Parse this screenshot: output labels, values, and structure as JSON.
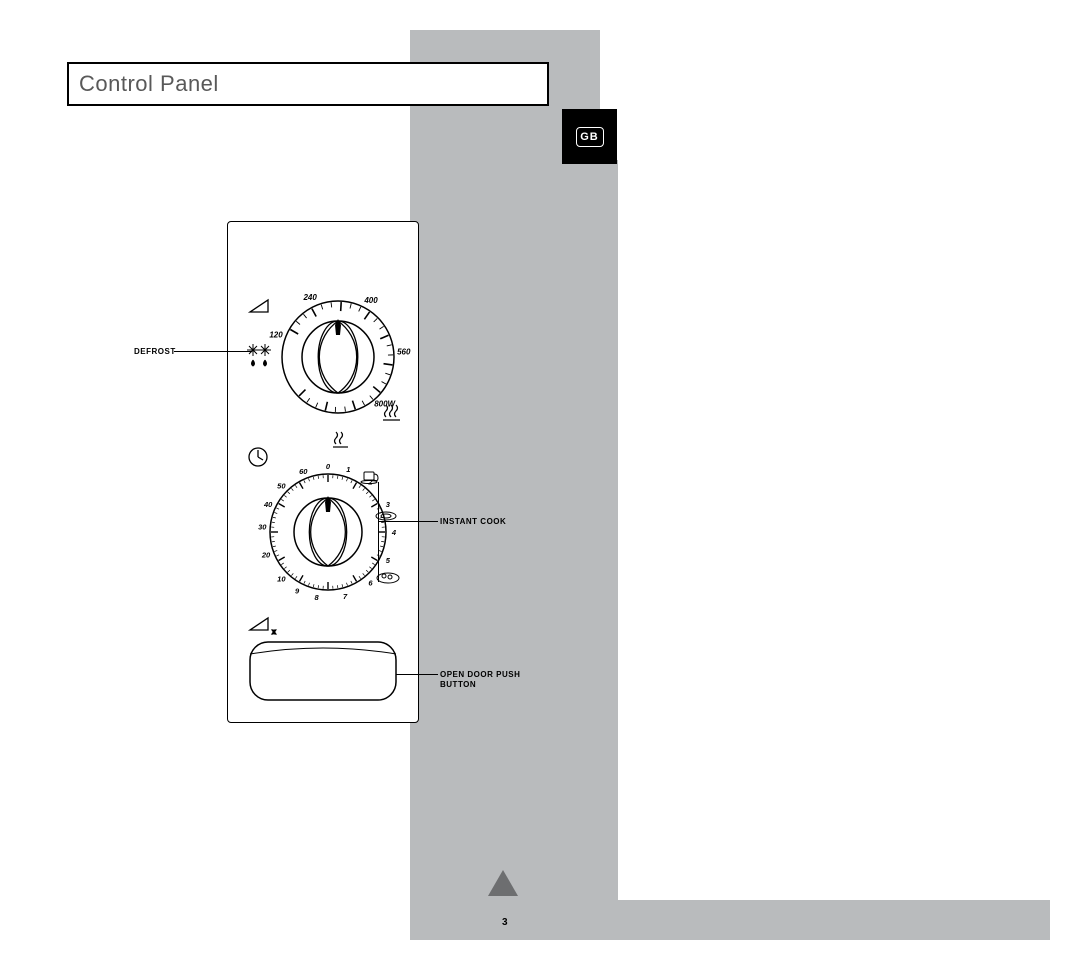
{
  "title": "Control Panel",
  "language_badge": "GB",
  "page_number": "3",
  "callouts": {
    "defrost": "DEFROST",
    "instant_cook": "INSTANT COOK",
    "open_door": "OPEN DOOR PUSH BUTTON"
  },
  "power_dial": {
    "labels": [
      "120",
      "240",
      "400",
      "560",
      "800W"
    ],
    "tick_count": 28,
    "radius_outer": 56,
    "radius_inner": 36,
    "tick_len": 8,
    "label_radius": 66,
    "start_deg": 210,
    "end_deg": 495
  },
  "timer_dial": {
    "labels": [
      "0",
      "1",
      "2",
      "3",
      "4",
      "5",
      "6",
      "7",
      "8",
      "9",
      "10",
      "20",
      "30",
      "40",
      "50",
      "60"
    ],
    "radius_outer": 58,
    "radius_inner": 34,
    "label_radius": 66
  },
  "colors": {
    "grey": "#b9bbbd",
    "black": "#000000",
    "title_grey": "#595959"
  }
}
